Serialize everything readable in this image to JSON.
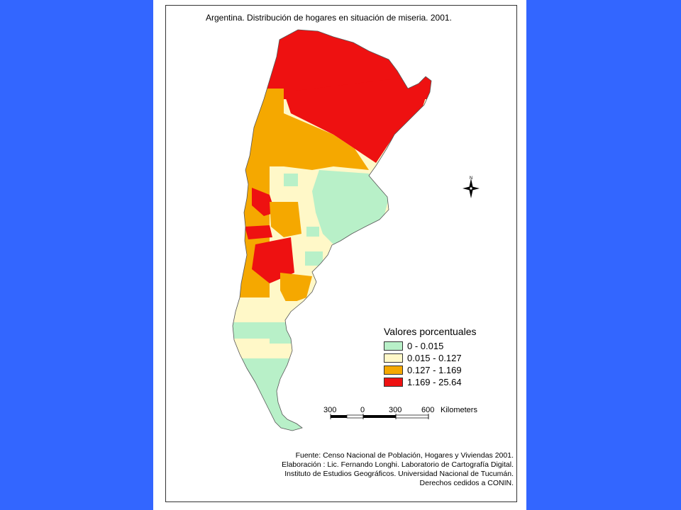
{
  "title": "Argentina. Distribución de hogares en situación de miseria. 2001.",
  "colors": {
    "background": "#3366ff",
    "class_1": "#b8f0c8",
    "class_2": "#fff8c8",
    "class_3": "#f5a800",
    "class_4": "#ee1111"
  },
  "legend": {
    "title": "Valores porcentuales",
    "items": [
      {
        "label": "0 - 0.015",
        "color": "#b8f0c8"
      },
      {
        "label": "0.015 - 0.127",
        "color": "#fff8c8"
      },
      {
        "label": "0.127 - 1.169",
        "color": "#f5a800"
      },
      {
        "label": "1.169 - 25.64",
        "color": "#ee1111"
      }
    ]
  },
  "scale": {
    "ticks": [
      "300",
      "0",
      "300",
      "600"
    ],
    "unit": "Kilometers"
  },
  "north_arrow": {
    "label": "N",
    "icon": "compass-rose-icon"
  },
  "credits": [
    "Fuente: Censo Nacional de Población, Hogares y Viviendas 2001.",
    "Elaboración : Lic. Fernando Longhi. Laboratorio de Cartografía Digital.",
    "Instituto de Estudios Geográficos. Universidad Nacional de Tucumán.",
    "Derechos cedidos a CONIN."
  ]
}
